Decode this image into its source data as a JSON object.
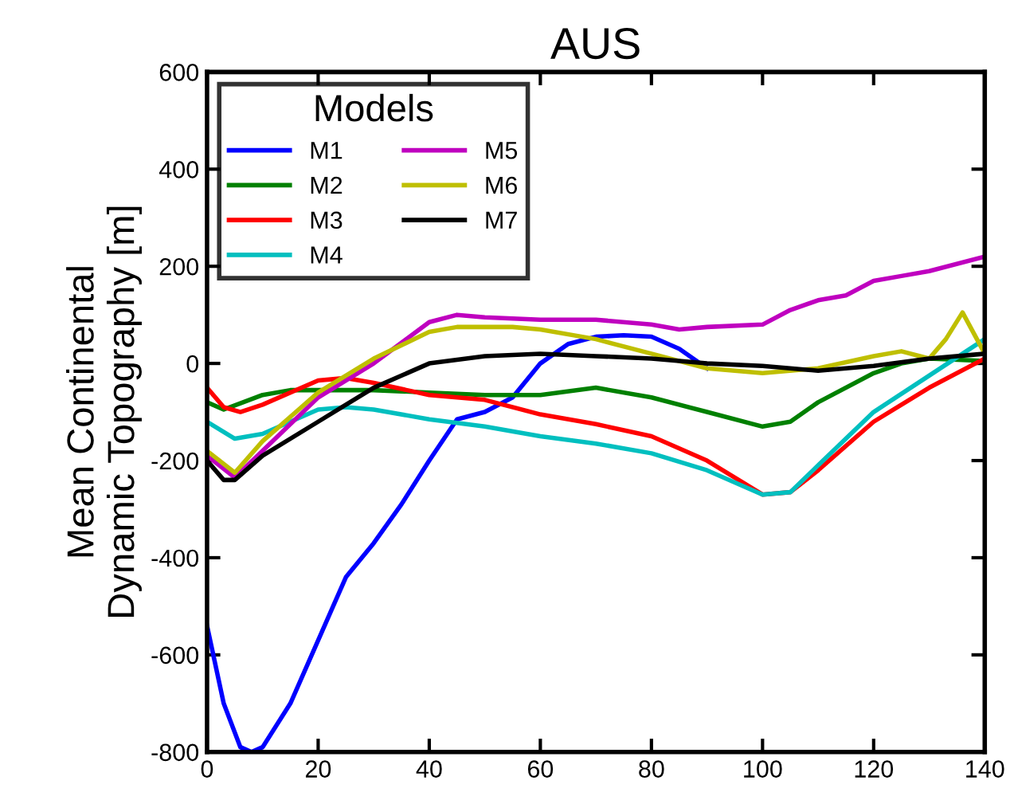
{
  "chart_data": {
    "type": "line",
    "title": "AUS",
    "ylabel": "Mean Continental\nDynamic Topography [m]",
    "legend_title": "Models",
    "legend": "top left",
    "grid": false,
    "xlim": [
      0,
      140
    ],
    "xticks": [
      0,
      20,
      40,
      60,
      80,
      100,
      120,
      140
    ],
    "ylim": [
      -800,
      600
    ],
    "yticks": [
      -800,
      -600,
      -400,
      -200,
      0,
      200,
      400,
      600
    ],
    "series": [
      {
        "name": "M1",
        "color": "#0000ff",
        "x": [
          0,
          3,
          6,
          8,
          10,
          15,
          20,
          25,
          30,
          35,
          40,
          45,
          50,
          55,
          60,
          65,
          70,
          75,
          80,
          85,
          90
        ],
        "values": [
          -540,
          -700,
          -790,
          -800,
          -790,
          -700,
          -570,
          -440,
          -370,
          -290,
          -200,
          -115,
          -100,
          -70,
          0,
          40,
          55,
          58,
          55,
          30,
          -10
        ]
      },
      {
        "name": "M2",
        "color": "#008000",
        "x": [
          0,
          3,
          10,
          15,
          20,
          30,
          40,
          50,
          60,
          70,
          80,
          90,
          100,
          105,
          110,
          120,
          125,
          130,
          140
        ],
        "values": [
          -80,
          -95,
          -65,
          -55,
          -55,
          -55,
          -60,
          -65,
          -65,
          -50,
          -70,
          -100,
          -130,
          -120,
          -80,
          -20,
          0,
          10,
          5
        ]
      },
      {
        "name": "M3",
        "color": "#ff0000",
        "x": [
          0,
          3,
          6,
          10,
          20,
          25,
          30,
          40,
          50,
          60,
          70,
          80,
          90,
          100,
          105,
          110,
          120,
          130,
          140
        ],
        "values": [
          -50,
          -90,
          -100,
          -85,
          -35,
          -30,
          -40,
          -65,
          -75,
          -105,
          -125,
          -150,
          -200,
          -270,
          -265,
          -220,
          -120,
          -50,
          10
        ]
      },
      {
        "name": "M4",
        "color": "#00bfbf",
        "x": [
          0,
          5,
          10,
          20,
          25,
          30,
          40,
          50,
          60,
          70,
          80,
          90,
          100,
          105,
          110,
          120,
          130,
          140
        ],
        "values": [
          -120,
          -155,
          -145,
          -95,
          -90,
          -95,
          -115,
          -130,
          -150,
          -165,
          -185,
          -220,
          -270,
          -265,
          -210,
          -100,
          -25,
          50
        ]
      },
      {
        "name": "M5",
        "color": "#bf00bf",
        "x": [
          0,
          5,
          10,
          20,
          30,
          40,
          45,
          50,
          60,
          70,
          80,
          85,
          90,
          100,
          105,
          110,
          115,
          120,
          125,
          130,
          140
        ],
        "values": [
          -190,
          -235,
          -180,
          -70,
          0,
          85,
          100,
          95,
          90,
          90,
          80,
          70,
          75,
          80,
          110,
          130,
          140,
          170,
          180,
          190,
          220
        ]
      },
      {
        "name": "M6",
        "color": "#bfbf00",
        "x": [
          0,
          5,
          10,
          20,
          30,
          40,
          45,
          55,
          60,
          70,
          80,
          90,
          100,
          110,
          120,
          125,
          130,
          133,
          136,
          140
        ],
        "values": [
          -180,
          -225,
          -160,
          -60,
          10,
          65,
          75,
          75,
          70,
          50,
          20,
          -10,
          -20,
          -10,
          15,
          25,
          10,
          50,
          105,
          20
        ]
      },
      {
        "name": "M7",
        "color": "#000000",
        "x": [
          0,
          3,
          5,
          10,
          20,
          30,
          40,
          50,
          60,
          70,
          80,
          90,
          100,
          110,
          120,
          130,
          140
        ],
        "values": [
          -200,
          -240,
          -240,
          -190,
          -120,
          -50,
          0,
          15,
          20,
          15,
          10,
          0,
          -5,
          -15,
          -5,
          10,
          20
        ]
      }
    ]
  }
}
